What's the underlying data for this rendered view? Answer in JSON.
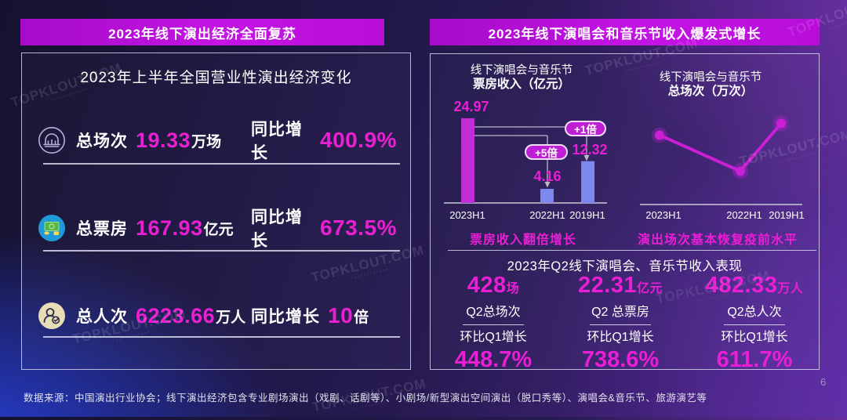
{
  "page": {
    "page_number": "6",
    "footer": "数据来源：中国演出行业协会；线下演出经济包含专业剧场演出（戏剧、话剧等）、小剧场/新型演出空间演出（脱口秀等）、演唱会&音乐节、旅游演艺等",
    "watermark": "TOPKLOUT.COM",
    "watermark_sub": "▪▪▪▪▪▪▪▪▪▪▪▪"
  },
  "colors": {
    "accent_magenta": "#e81fd4",
    "bar_magenta": "#c22cd4",
    "bar_blue": "#7d88ec",
    "header_bar": "#b90fd6"
  },
  "left_panel": {
    "header": "2023年线下演出经济全面复苏",
    "box_title": "2023年上半年全国营业性演出经济变化",
    "rows": [
      {
        "icon": "venue-building-icon",
        "label": "总场次",
        "value": "19.33",
        "unit": "万场",
        "growth_label": "同比增长",
        "growth_value": "400.9%",
        "growth_unit": ""
      },
      {
        "icon": "box-office-money-icon",
        "label": "总票房",
        "value": "167.93",
        "unit": "亿元",
        "growth_label": "同比增长",
        "growth_value": "673.5%",
        "growth_unit": ""
      },
      {
        "icon": "audience-person-icon",
        "label": "总人次",
        "value": "6223.66",
        "unit": "万人",
        "growth_label": "同比增长",
        "growth_value": "10",
        "growth_unit": "倍"
      }
    ]
  },
  "right_panel": {
    "header": "2023年线下演唱会和音乐节收入爆发式增长",
    "bar_caption": "票房收入翻倍增长",
    "line_caption": "演出场次基本恢复疫前水平",
    "q2_section": {
      "title": "2023年Q2线下演唱会、音乐节收入表现",
      "items": [
        {
          "value": "428",
          "unit": "场",
          "label": "Q2总场次",
          "growth_label": "环比Q1增长",
          "growth_value": "448.7%"
        },
        {
          "value": "22.31",
          "unit": "亿元",
          "label": "Q2 总票房",
          "growth_label": "环比Q1增长",
          "growth_value": "738.6%"
        },
        {
          "value": "482.33",
          "unit": "万人",
          "label": "Q2总人次",
          "growth_label": "环比Q1增长",
          "growth_value": "611.7%"
        }
      ]
    }
  },
  "chart_data": [
    {
      "type": "bar",
      "title": "线下演唱会与音乐节",
      "subtitle": "票房收入（亿元）",
      "categories": [
        "2023H1",
        "2022H1",
        "2019H1"
      ],
      "values": [
        24.97,
        4.16,
        12.32
      ],
      "bar_colors": [
        "#c22cd4",
        "#7d88ec",
        "#7d88ec"
      ],
      "annotations": [
        {
          "text": "+5倍",
          "target": "2022H1"
        },
        {
          "text": "+1倍",
          "target": "2019H1"
        }
      ],
      "ylim": [
        0,
        26
      ],
      "grid": false,
      "legend": false
    },
    {
      "type": "line",
      "title": "线下演唱会与音乐节",
      "subtitle": "总场次（万次）",
      "categories": [
        "2023H1",
        "2022H1",
        "2019H1"
      ],
      "values_relative_estimated": [
        0.77,
        0.37,
        0.9
      ],
      "grid": false,
      "legend": false
    }
  ]
}
